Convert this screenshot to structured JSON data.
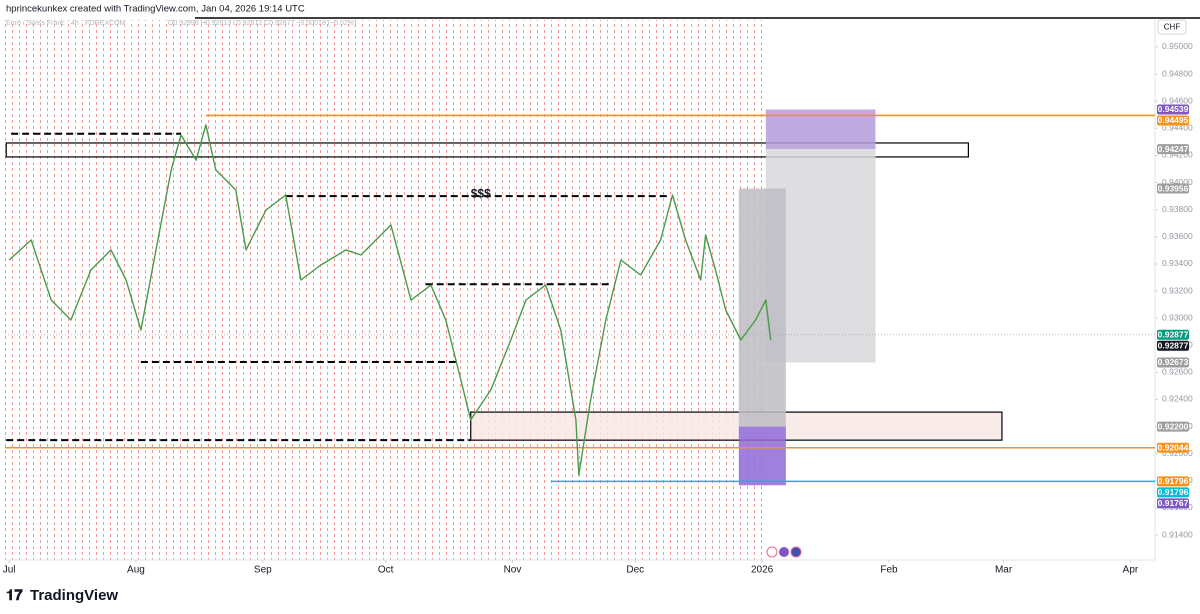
{
  "header": {
    "credit": "hprincekunkex created with TradingView.com, Jan 04, 2026 19:14 UTC",
    "symbol": "Euro / Swiss Franc · 4h · FOREXCOM",
    "ohlc": "O0.92896 H0.92913 L0.92812 C0.92877 −0.00018 (−0.02%)"
  },
  "chart_data": {
    "type": "line",
    "currency": "CHF",
    "annotation": "$$$",
    "color": "#4a9a4a",
    "x": [
      0,
      5.4,
      10.3,
      15.1,
      20.0,
      24.9,
      28.6,
      32.2,
      35.9,
      39.6,
      42.0,
      45.7,
      48.1,
      50.5,
      55.4,
      57.9,
      62.8,
      67.6,
      71.3,
      76.2,
      82.3,
      86.0,
      89.6,
      93.3,
      98.2,
      103.1,
      106.7,
      110.4,
      112.8,
      117.7,
      122.6,
      126.3,
      131.1,
      134.8,
      138.5,
      139.2,
      142.1,
      145.8,
      149.5,
      154.3,
      159.2,
      162.1,
      165.3,
      169.0,
      170.2,
      172.6,
      175.1,
      178.8,
      182.4,
      184.9,
      186.1
    ],
    "values": [
      0.93429,
      0.93576,
      0.93134,
      0.92986,
      0.93355,
      0.93503,
      0.93281,
      0.92912,
      0.93503,
      0.94093,
      0.94351,
      0.94166,
      0.94425,
      0.94093,
      0.93945,
      0.93503,
      0.93798,
      0.93908,
      0.93281,
      0.93392,
      0.93503,
      0.93466,
      0.93576,
      0.93687,
      0.93134,
      0.93244,
      0.92986,
      0.92544,
      0.92249,
      0.9247,
      0.92839,
      0.93134,
      0.93244,
      0.92912,
      0.92249,
      0.91843,
      0.92396,
      0.92986,
      0.93429,
      0.93318,
      0.93576,
      0.93908,
      0.93576,
      0.93281,
      0.93613,
      0.93355,
      0.9306,
      0.92839,
      0.92986,
      0.93134,
      0.92839
    ],
    "xlim": [
      -1,
      280
    ],
    "xticks": [
      {
        "value": 0,
        "label": "Jul"
      },
      {
        "value": 31,
        "label": "Aug"
      },
      {
        "value": 62,
        "label": "Sep"
      },
      {
        "value": 92,
        "label": "Oct"
      },
      {
        "value": 123,
        "label": "Nov"
      },
      {
        "value": 153,
        "label": "Dec"
      },
      {
        "value": 184,
        "label": "2026"
      },
      {
        "value": 215,
        "label": "Feb"
      },
      {
        "value": 243,
        "label": "Mar"
      },
      {
        "value": 274,
        "label": "Apr"
      }
    ],
    "ylim": [
      0.91216,
      0.95199
    ],
    "yticks": [
      {
        "value": 0.95,
        "label": "0.95000"
      },
      {
        "value": 0.948,
        "label": "0.94800"
      },
      {
        "value": 0.946,
        "label": "0.94600"
      },
      {
        "value": 0.944,
        "label": "0.94400"
      },
      {
        "value": 0.942,
        "label": "0.94200"
      },
      {
        "value": 0.94,
        "label": "0.94000"
      },
      {
        "value": 0.938,
        "label": "0.93800"
      },
      {
        "value": 0.936,
        "label": "0.93600"
      },
      {
        "value": 0.934,
        "label": "0.93400"
      },
      {
        "value": 0.932,
        "label": "0.93200"
      },
      {
        "value": 0.93,
        "label": "0.93000"
      },
      {
        "value": 0.928,
        "label": "0.92800"
      },
      {
        "value": 0.926,
        "label": "0.92600"
      },
      {
        "value": 0.924,
        "label": "0.92400"
      },
      {
        "value": 0.922,
        "label": "0.92200"
      },
      {
        "value": 0.92,
        "label": "0.92000"
      },
      {
        "value": 0.918,
        "label": "0.91800"
      },
      {
        "value": 0.916,
        "label": "0.91600"
      },
      {
        "value": 0.914,
        "label": "0.91400"
      }
    ],
    "zones": [
      {
        "top": 0.94292,
        "bottom": 0.94189,
        "x0": -0.7,
        "x1": 234.4,
        "fill": "none",
        "stroke": "#000000"
      },
      {
        "top": 0.92307,
        "bottom": 0.921,
        "x0": 112.8,
        "x1": 242.6,
        "fill": "#f9e8e8",
        "stroke": "#000000"
      },
      {
        "top": 0.94539,
        "bottom": 0.94247,
        "x0": 184.9,
        "x1": 211.7,
        "fill": "#b39ddb",
        "stroke": "none"
      },
      {
        "top": 0.94247,
        "bottom": 0.92673,
        "x0": 184.9,
        "x1": 211.7,
        "fill": "#d8d8dc",
        "stroke": "none"
      },
      {
        "top": 0.93956,
        "bottom": 0.922,
        "x0": 178.3,
        "x1": 189.8,
        "fill": "#bdbdc3",
        "stroke": "none"
      },
      {
        "top": 0.922,
        "bottom": 0.91767,
        "x0": 178.3,
        "x1": 189.8,
        "fill": "#8e6ad8",
        "stroke": "none"
      }
    ],
    "levels": [
      {
        "value": 0.94495,
        "x0": 48.1,
        "x1": 280,
        "color": "#f7931a",
        "style": "solid"
      },
      {
        "value": 0.92044,
        "x0": -1,
        "x1": 280,
        "color": "#f7931a",
        "style": "solid"
      },
      {
        "value": 0.91796,
        "x0": 132.4,
        "x1": 280,
        "color": "#00bcd4",
        "style": "solid"
      },
      {
        "value": 0.9436,
        "x0": 0.5,
        "x1": 42,
        "color": "#000000",
        "style": "dashed"
      },
      {
        "value": 0.939,
        "x0": 67.6,
        "x1": 161.2,
        "color": "#000000",
        "style": "dashed"
      },
      {
        "value": 0.9325,
        "x0": 101.8,
        "x1": 147,
        "color": "#000000",
        "style": "dashed"
      },
      {
        "value": 0.92676,
        "x0": 32.2,
        "x1": 109.2,
        "color": "#000000",
        "style": "dashed"
      },
      {
        "value": 0.921,
        "x0": -0.7,
        "x1": 112.8,
        "color": "#000000",
        "style": "dashed"
      },
      {
        "value": 0.92877,
        "x0": -1,
        "x1": 280,
        "color": "#9598a1",
        "style": "dotted"
      }
    ],
    "price_labels": [
      {
        "value": 0.94539,
        "label": "0.94539",
        "color": "#7e57c2"
      },
      {
        "value": 0.94495,
        "label": "0.94495",
        "color": "#f7931a"
      },
      {
        "value": 0.94247,
        "label": "0.94247",
        "color": "#9e9e9e"
      },
      {
        "value": 0.93956,
        "label": "0.93956",
        "color": "#9e9e9e"
      },
      {
        "value": 0.92877,
        "label": "0.92877",
        "color": "#089981"
      },
      {
        "value": 0.92877,
        "label": "0.92877",
        "color": "#131722"
      },
      {
        "value": 0.92673,
        "label": "0.92673",
        "color": "#9e9e9e"
      },
      {
        "value": 0.922,
        "label": "0.92200",
        "color": "#9e9e9e"
      },
      {
        "value": 0.92044,
        "label": "0.92044",
        "color": "#f7931a"
      },
      {
        "value": 0.91796,
        "label": "0.91796",
        "color": "#f7931a"
      },
      {
        "value": 0.91796,
        "label": "0.91796",
        "color": "#00bcd4"
      },
      {
        "value": 0.91767,
        "label": "0.91767",
        "color": "#7e57c2"
      }
    ]
  },
  "footer": {
    "brand": "TradingView"
  }
}
